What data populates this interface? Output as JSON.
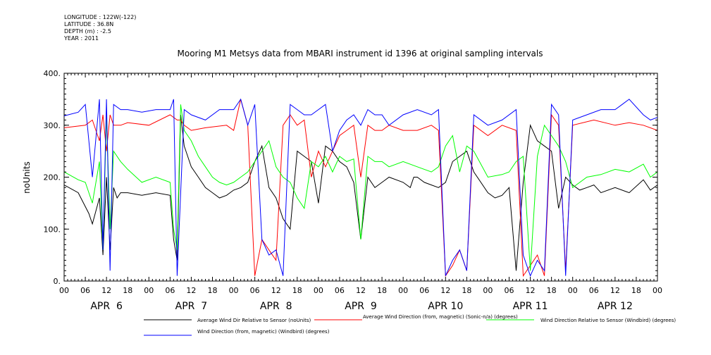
{
  "meta": {
    "longitude": "LONGITUDE : 122W(-122)",
    "latitude": "LATITUDE : 36.8N",
    "depth": "DEPTH (m) : -2.5",
    "year": "YEAR : 2011"
  },
  "chart_data": {
    "type": "line",
    "title": "Mooring M1 Metsys data from MBARI instrument id 1396 at original sampling intervals",
    "ylabel": "noUnits",
    "xlabel": "",
    "ylim": [
      0,
      400
    ],
    "yticks": [
      "0.",
      "100.",
      "200.",
      "300.",
      "400."
    ],
    "xlim_hours": [
      0,
      168
    ],
    "hour_ticks": [
      "00",
      "06",
      "12",
      "18",
      "00",
      "06",
      "12",
      "18",
      "00",
      "06",
      "12",
      "18",
      "00",
      "06",
      "12",
      "18",
      "00",
      "06",
      "12",
      "18",
      "00",
      "06",
      "12",
      "18",
      "00",
      "06",
      "12",
      "18",
      "00"
    ],
    "day_labels": [
      "APR  6",
      "APR  7",
      "APR  8",
      "APR  9",
      "APR 10",
      "APR 11",
      "APR 12"
    ],
    "grid": false,
    "legend_position": "bottom",
    "series": [
      {
        "name": "Average Wind Dir Relative to Sensor (noUnits)",
        "color": "#000000",
        "x_hours": [
          0,
          4,
          7,
          8,
          10,
          11,
          12,
          13,
          14,
          15,
          16,
          18,
          22,
          26,
          30,
          31,
          32,
          33,
          34,
          35,
          36,
          38,
          40,
          42,
          44,
          46,
          48,
          50,
          52,
          54,
          56,
          58,
          60,
          62,
          64,
          66,
          68,
          70,
          72,
          74,
          76,
          78,
          80,
          82,
          84,
          86,
          88,
          90,
          92,
          96,
          98,
          99,
          100,
          102,
          104,
          106,
          108,
          110,
          112,
          114,
          116,
          120,
          122,
          124,
          126,
          128,
          130,
          132,
          134,
          136,
          138,
          140,
          142,
          144,
          146,
          148,
          150,
          152,
          156,
          160,
          164,
          166,
          168
        ],
        "values": [
          185,
          170,
          130,
          110,
          160,
          50,
          200,
          60,
          180,
          160,
          170,
          170,
          165,
          170,
          165,
          80,
          40,
          320,
          260,
          240,
          220,
          200,
          180,
          170,
          160,
          165,
          175,
          180,
          190,
          230,
          260,
          180,
          160,
          120,
          100,
          250,
          240,
          230,
          150,
          260,
          250,
          230,
          220,
          190,
          80,
          200,
          180,
          190,
          200,
          190,
          180,
          200,
          200,
          190,
          185,
          180,
          190,
          230,
          240,
          250,
          210,
          170,
          160,
          165,
          180,
          20,
          190,
          300,
          270,
          260,
          250,
          140,
          200,
          185,
          175,
          180,
          185,
          170,
          180,
          170,
          195,
          175,
          185
        ]
      },
      {
        "name": "Average Wind Direction (from, magnetic) (Sonic-n/a) (degrees)",
        "color": "#ff0000",
        "x_hours": [
          0,
          6,
          8,
          10,
          11,
          12,
          13,
          14,
          16,
          18,
          24,
          30,
          32,
          33,
          34,
          36,
          40,
          46,
          48,
          50,
          52,
          54,
          56,
          58,
          60,
          62,
          64,
          66,
          68,
          70,
          72,
          74,
          76,
          78,
          80,
          82,
          84,
          86,
          88,
          90,
          92,
          96,
          100,
          104,
          106,
          108,
          110,
          112,
          114,
          116,
          120,
          124,
          128,
          130,
          132,
          134,
          136,
          138,
          140,
          142,
          144,
          150,
          156,
          160,
          164,
          168
        ],
        "values": [
          295,
          300,
          310,
          270,
          320,
          250,
          320,
          300,
          300,
          305,
          300,
          320,
          310,
          310,
          300,
          290,
          295,
          300,
          290,
          350,
          300,
          10,
          80,
          60,
          40,
          300,
          320,
          300,
          310,
          200,
          250,
          220,
          250,
          280,
          290,
          300,
          200,
          300,
          290,
          290,
          300,
          290,
          290,
          300,
          290,
          10,
          30,
          60,
          20,
          300,
          280,
          300,
          290,
          10,
          30,
          50,
          10,
          320,
          300,
          20,
          300,
          310,
          300,
          305,
          300,
          290
        ]
      },
      {
        "name": "Wind Direction Relative to Sensor (Windbird) (degrees)",
        "color": "#00ff00",
        "x_hours": [
          0,
          4,
          6,
          8,
          10,
          11,
          12,
          13,
          14,
          16,
          18,
          22,
          26,
          30,
          31,
          32,
          33,
          34,
          36,
          38,
          40,
          42,
          44,
          46,
          48,
          50,
          52,
          54,
          56,
          58,
          60,
          62,
          64,
          66,
          68,
          70,
          72,
          74,
          76,
          78,
          80,
          82,
          84,
          86,
          88,
          90,
          92,
          96,
          100,
          104,
          106,
          108,
          110,
          112,
          114,
          116,
          120,
          124,
          126,
          128,
          130,
          132,
          134,
          136,
          138,
          140,
          142,
          144,
          148,
          152,
          156,
          160,
          164,
          166,
          168
        ],
        "values": [
          210,
          195,
          190,
          150,
          230,
          60,
          320,
          100,
          250,
          230,
          215,
          190,
          200,
          190,
          100,
          60,
          340,
          290,
          270,
          240,
          220,
          200,
          190,
          185,
          190,
          200,
          210,
          230,
          250,
          270,
          220,
          200,
          190,
          160,
          140,
          230,
          220,
          240,
          210,
          240,
          230,
          235,
          80,
          240,
          230,
          230,
          220,
          230,
          220,
          210,
          220,
          260,
          280,
          210,
          260,
          250,
          200,
          205,
          210,
          230,
          240,
          20,
          240,
          300,
          280,
          260,
          230,
          180,
          200,
          205,
          215,
          210,
          225,
          200,
          210
        ]
      },
      {
        "name": "Wind Direction (from, magnetic) (Windbird) (degrees)",
        "color": "#0000ff",
        "x_hours": [
          0,
          4,
          6,
          8,
          10,
          11,
          12,
          13,
          14,
          16,
          18,
          22,
          26,
          30,
          31,
          32,
          34,
          36,
          40,
          44,
          48,
          50,
          52,
          54,
          56,
          58,
          60,
          62,
          64,
          66,
          68,
          70,
          72,
          74,
          76,
          78,
          80,
          82,
          84,
          86,
          88,
          90,
          92,
          96,
          100,
          104,
          106,
          108,
          110,
          112,
          114,
          116,
          120,
          124,
          128,
          130,
          132,
          134,
          136,
          138,
          140,
          142,
          144,
          148,
          152,
          156,
          158,
          160,
          164,
          166,
          168
        ],
        "values": [
          318,
          325,
          340,
          200,
          350,
          60,
          350,
          20,
          340,
          330,
          330,
          325,
          330,
          330,
          350,
          10,
          330,
          320,
          310,
          330,
          330,
          350,
          300,
          340,
          80,
          50,
          60,
          10,
          340,
          330,
          320,
          320,
          330,
          340,
          250,
          290,
          310,
          320,
          300,
          330,
          320,
          320,
          300,
          320,
          330,
          320,
          330,
          10,
          40,
          60,
          20,
          320,
          300,
          310,
          330,
          50,
          10,
          40,
          20,
          340,
          320,
          10,
          310,
          320,
          330,
          330,
          340,
          350,
          320,
          310,
          315
        ]
      }
    ]
  }
}
